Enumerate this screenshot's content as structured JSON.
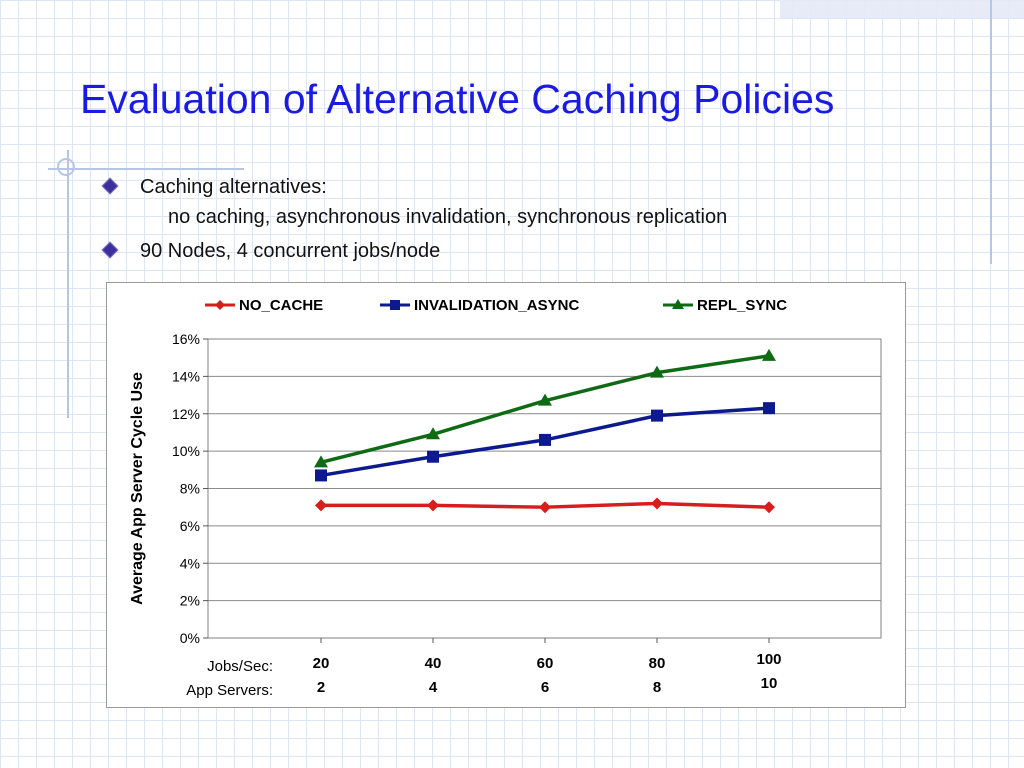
{
  "slide": {
    "title": "Evaluation of Alternative Caching Policies",
    "bullets": [
      {
        "line1": "Caching alternatives:",
        "line2": "no caching,  asynchronous invalidation,  synchronous replication"
      },
      {
        "line1": "90 Nodes, 4 concurrent jobs/node"
      }
    ]
  },
  "colors": {
    "title": "#1a1ae6",
    "no_cache": "#d81d1d",
    "invalidation_async": "#0d1a8f",
    "repl_sync": "#0f6a14"
  },
  "chart_data": {
    "type": "line",
    "title": "",
    "xlabel": "",
    "ylabel": "Average App Server Cycle Use",
    "x_row_labels": [
      "Jobs/Sec:",
      "App Servers:"
    ],
    "categories": [
      "20",
      "40",
      "60",
      "80",
      "100"
    ],
    "app_servers": [
      "2",
      "4",
      "6",
      "8",
      "10"
    ],
    "ylim": [
      0,
      16
    ],
    "y_ticks": [
      0,
      2,
      4,
      6,
      8,
      10,
      12,
      14,
      16
    ],
    "y_tick_labels": [
      "0%",
      "2%",
      "4%",
      "6%",
      "8%",
      "10%",
      "12%",
      "14%",
      "16%"
    ],
    "grid": "horizontal",
    "legend_position": "top",
    "series": [
      {
        "name": "NO_CACHE",
        "marker": "diamond",
        "color": "#d81d1d",
        "values": [
          7.1,
          7.1,
          7.0,
          7.2,
          7.0
        ]
      },
      {
        "name": "INVALIDATION_ASYNC",
        "marker": "square",
        "color": "#0d1a8f",
        "values": [
          8.7,
          9.7,
          10.6,
          11.9,
          12.3
        ]
      },
      {
        "name": "REPL_SYNC",
        "marker": "triangle",
        "color": "#0f6a14",
        "values": [
          9.4,
          10.9,
          12.7,
          14.2,
          15.1
        ]
      }
    ]
  }
}
